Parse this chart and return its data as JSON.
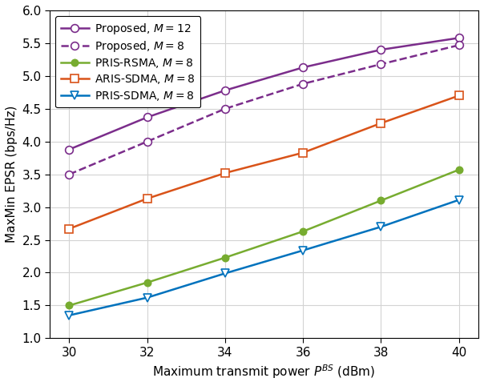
{
  "x": [
    30,
    32,
    34,
    36,
    38,
    40
  ],
  "series": [
    {
      "label": "Proposed, $M = 12$",
      "y": [
        3.88,
        4.37,
        4.78,
        5.13,
        5.4,
        5.58
      ],
      "color": "#7B2D8B",
      "linestyle": "-",
      "marker": "o",
      "markerfacecolor": "white",
      "markeredgecolor": "#7B2D8B",
      "markersize": 7,
      "linewidth": 1.8
    },
    {
      "label": "Proposed, $M = 8$",
      "y": [
        3.5,
        4.0,
        4.5,
        4.88,
        5.18,
        5.47
      ],
      "color": "#7B2D8B",
      "linestyle": "--",
      "marker": "o",
      "markerfacecolor": "white",
      "markeredgecolor": "#7B2D8B",
      "markersize": 7,
      "linewidth": 1.8
    },
    {
      "label": "PRIS-RSMA, $M = 8$",
      "y": [
        1.5,
        1.85,
        2.23,
        2.63,
        3.1,
        3.57
      ],
      "color": "#77AC30",
      "linestyle": "-",
      "marker": "o",
      "markerfacecolor": "#77AC30",
      "markeredgecolor": "#77AC30",
      "markersize": 6,
      "linewidth": 1.8
    },
    {
      "label": "ARIS-SDMA, $M = 8$",
      "y": [
        2.67,
        3.13,
        3.52,
        3.83,
        4.28,
        4.7
      ],
      "color": "#D95319",
      "linestyle": "-",
      "marker": "s",
      "markerfacecolor": "white",
      "markeredgecolor": "#D95319",
      "markersize": 7,
      "linewidth": 1.8
    },
    {
      "label": "PRIS-SDMA, $M = 8$",
      "y": [
        1.35,
        1.62,
        1.99,
        2.34,
        2.7,
        3.11
      ],
      "color": "#0072BD",
      "linestyle": "-",
      "marker": "v",
      "markerfacecolor": "white",
      "markeredgecolor": "#0072BD",
      "markersize": 7,
      "linewidth": 1.8
    }
  ],
  "xlabel": "Maximum transmit power $P^{BS}$ (dBm)",
  "ylabel": "MaxMin EPSR (bps/Hz)",
  "xlim": [
    29.5,
    40.5
  ],
  "ylim": [
    1.0,
    6.0
  ],
  "xticks": [
    30,
    32,
    34,
    36,
    38,
    40
  ],
  "yticks": [
    1.0,
    1.5,
    2.0,
    2.5,
    3.0,
    3.5,
    4.0,
    4.5,
    5.0,
    5.5,
    6.0
  ],
  "grid": true,
  "legend_loc": "upper left",
  "label_fontsize": 11,
  "tick_fontsize": 11,
  "legend_fontsize": 10,
  "background_color": "#ffffff",
  "grid_color": "#D3D3D3"
}
